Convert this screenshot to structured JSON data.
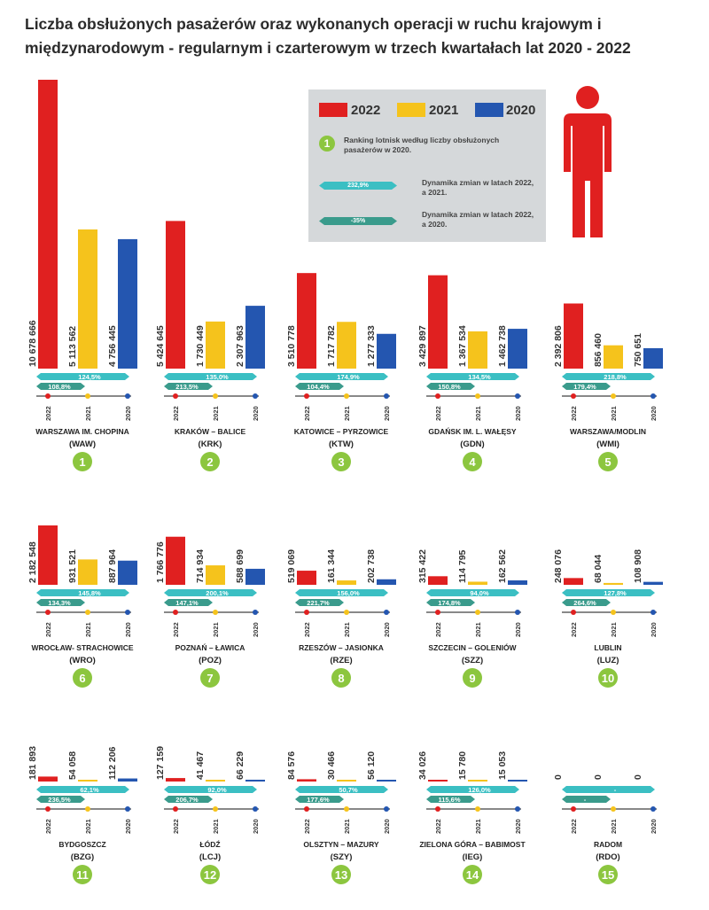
{
  "title": "Liczba obsłużonych pasażerów oraz wykonanych operacji w ruchu krajowym i międzynarodowym - regularnym i czarterowym w trzech kwartałach lat 2020 - 2022",
  "colors": {
    "y2022": "#e02020",
    "y2021": "#f5c31c",
    "y2020": "#2456b0",
    "teal": "#3bbfc3",
    "dark_teal": "#3a9b8c",
    "green": "#8cc63f",
    "person": "#e02020"
  },
  "legend": {
    "years": [
      "2022",
      "2021",
      "2020"
    ],
    "ranking_number": "1",
    "ranking_text": "Ranking lotnisk według liczby obsłużonych pasażerów w 2020.",
    "arrow1_value": "232,9%",
    "arrow1_text": "Dynamika zmian w latach 2022, a 2021.",
    "arrow2_value": "-35%",
    "arrow2_text": "Dynamika zmian w latach 2022, a 2020."
  },
  "chart_data": {
    "type": "bar",
    "series": [
      {
        "name": "2022"
      },
      {
        "name": "2021"
      },
      {
        "name": "2020"
      }
    ],
    "timeline_labels": [
      "2022",
      "2021",
      "2020"
    ],
    "airports": [
      {
        "rank": "1",
        "name": "WARSZAWA IM. CHOPINA",
        "code": "(WAW)",
        "values": [
          10678666,
          5113562,
          4756445
        ],
        "labels": [
          "10 678 666",
          "5 113 562",
          "4 756 445"
        ],
        "dyn_21": "124,5%",
        "dyn_20": "108,8%"
      },
      {
        "rank": "2",
        "name": "KRAKÓW – BALICE",
        "code": "(KRK)",
        "values": [
          5424645,
          1730449,
          2307963
        ],
        "labels": [
          "5 424 645",
          "1 730 449",
          "2 307 963"
        ],
        "dyn_21": "135,0%",
        "dyn_20": "213,5%"
      },
      {
        "rank": "3",
        "name": "KATOWICE – PYRZOWICE",
        "code": "(KTW)",
        "values": [
          3510778,
          1717782,
          1277333
        ],
        "labels": [
          "3 510 778",
          "1 717 782",
          "1 277 333"
        ],
        "dyn_21": "174,9%",
        "dyn_20": "104,4%"
      },
      {
        "rank": "4",
        "name": "GDAŃSK IM. L. WAŁĘSY",
        "code": "(GDN)",
        "values": [
          3429897,
          1367534,
          1462738
        ],
        "labels": [
          "3 429 897",
          "1 367 534",
          "1 462 738"
        ],
        "dyn_21": "134,5%",
        "dyn_20": "150,8%"
      },
      {
        "rank": "5",
        "name": "WARSZAWA/MODLIN",
        "code": "(WMI)",
        "values": [
          2392806,
          856460,
          750651
        ],
        "labels": [
          "2 392 806",
          "856 460",
          "750 651"
        ],
        "dyn_21": "218,8%",
        "dyn_20": "179,4%"
      },
      {
        "rank": "6",
        "name": "WROCŁAW- STRACHOWICE",
        "code": "(WRO)",
        "values": [
          2182548,
          931521,
          887964
        ],
        "labels": [
          "2 182 548",
          "931 521",
          "887 964"
        ],
        "dyn_21": "145,8%",
        "dyn_20": "134,3%"
      },
      {
        "rank": "7",
        "name": "POZNAŃ – ŁAWICA",
        "code": "(POZ)",
        "values": [
          1766776,
          714934,
          588699
        ],
        "labels": [
          "1 766 776",
          "714 934",
          "588 699"
        ],
        "dyn_21": "200,1%",
        "dyn_20": "147,1%"
      },
      {
        "rank": "8",
        "name": "RZESZÓW – JASIONKA",
        "code": "(RZE)",
        "values": [
          519069,
          161344,
          202738
        ],
        "labels": [
          "519 069",
          "161 344",
          "202 738"
        ],
        "dyn_21": "156,0%",
        "dyn_20": "221,7%"
      },
      {
        "rank": "9",
        "name": "SZCZECIN – GOLENIÓW",
        "code": "(SZZ)",
        "values": [
          315422,
          114795,
          162562
        ],
        "labels": [
          "315 422",
          "114 795",
          "162 562"
        ],
        "dyn_21": "94,0%",
        "dyn_20": "174,8%"
      },
      {
        "rank": "10",
        "name": "LUBLIN",
        "code": "(LUZ)",
        "values": [
          248076,
          68044,
          108908
        ],
        "labels": [
          "248 076",
          "68 044",
          "108 908"
        ],
        "dyn_21": "127,8%",
        "dyn_20": "264,6%"
      },
      {
        "rank": "11",
        "name": "BYDGOSZCZ",
        "code": "(BZG)",
        "values": [
          181893,
          54058,
          112206
        ],
        "labels": [
          "181 893",
          "54 058",
          "112 206"
        ],
        "dyn_21": "62,1%",
        "dyn_20": "236,5%"
      },
      {
        "rank": "12",
        "name": "ŁÓDŹ",
        "code": "(LCJ)",
        "values": [
          127159,
          41467,
          66229
        ],
        "labels": [
          "127 159",
          "41 467",
          "66 229"
        ],
        "dyn_21": "92,0%",
        "dyn_20": "206,7%"
      },
      {
        "rank": "13",
        "name": "OLSZTYN – MAZURY",
        "code": "(SZY)",
        "values": [
          84576,
          30466,
          56120
        ],
        "labels": [
          "84 576",
          "30 466",
          "56 120"
        ],
        "dyn_21": "50,7%",
        "dyn_20": "177,6%"
      },
      {
        "rank": "14",
        "name": "ZIELONA GÓRA – BABIMOST",
        "code": "(IEG)",
        "values": [
          34026,
          15780,
          15053
        ],
        "labels": [
          "34 026",
          "15 780",
          "15 053"
        ],
        "dyn_21": "126,0%",
        "dyn_20": "115,6%"
      },
      {
        "rank": "15",
        "name": "RADOM",
        "code": "(RDO)",
        "values": [
          0,
          0,
          0
        ],
        "labels": [
          "0",
          "0",
          "0"
        ],
        "dyn_21": "-",
        "dyn_20": "-"
      }
    ]
  }
}
